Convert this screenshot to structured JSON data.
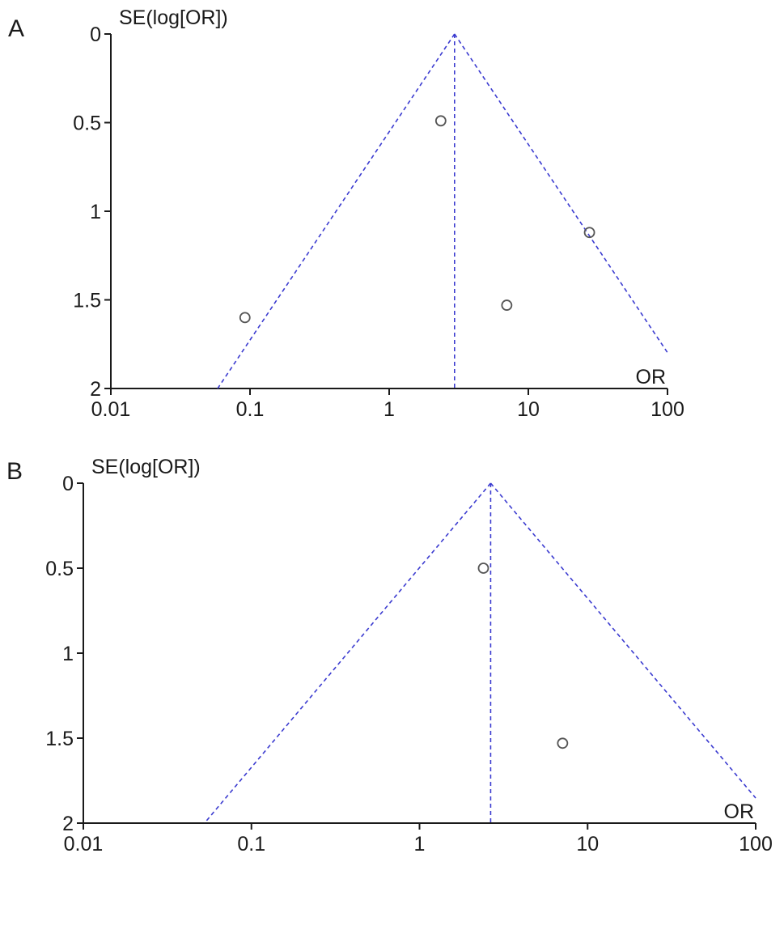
{
  "chart_data": [
    {
      "panel_label": "A",
      "type": "scatter",
      "ylabel": "SE(log[OR])",
      "xlabel": "OR",
      "x_scale": "log",
      "xlim": [
        0.01,
        100
      ],
      "ylim": [
        0,
        2
      ],
      "y_reversed": true,
      "x_ticks": [
        "0.01",
        "0.1",
        "1",
        "10",
        "100"
      ],
      "y_ticks": [
        "0",
        "0.5",
        "1",
        "1.5",
        "2"
      ],
      "pooled_or": 2.95,
      "points": [
        {
          "or": 2.35,
          "se": 0.49
        },
        {
          "or": 27.5,
          "se": 1.12
        },
        {
          "or": 7.0,
          "se": 1.53
        },
        {
          "or": 0.092,
          "se": 1.6
        }
      ]
    },
    {
      "panel_label": "B",
      "type": "scatter",
      "ylabel": "SE(log[OR])",
      "xlabel": "OR",
      "x_scale": "log",
      "xlim": [
        0.01,
        100
      ],
      "ylim": [
        0,
        2
      ],
      "y_reversed": true,
      "x_ticks": [
        "0.01",
        "0.1",
        "1",
        "10",
        "100"
      ],
      "y_ticks": [
        "0",
        "0.5",
        "1",
        "1.5",
        "2"
      ],
      "pooled_or": 2.65,
      "points": [
        {
          "or": 2.4,
          "se": 0.5
        },
        {
          "or": 7.1,
          "se": 1.53
        }
      ]
    }
  ],
  "colors": {
    "funnel": "#3b3bd0",
    "points": "#555555",
    "axes": "#1a1a1a"
  }
}
